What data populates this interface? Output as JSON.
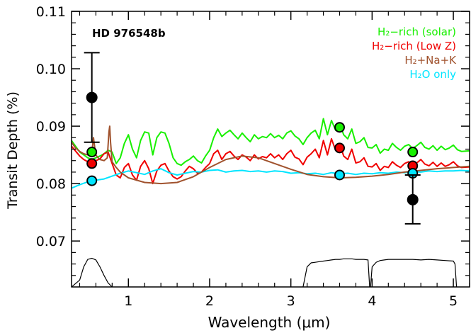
{
  "chart_data": {
    "type": "line",
    "planet_label": "HD 976548b",
    "xlabel": "Wavelength (μm)",
    "ylabel": "Transit Depth (%)",
    "xlim": [
      0.3,
      5.2
    ],
    "ylim": [
      0.062,
      0.11
    ],
    "xticks": [
      1,
      2,
      3,
      4,
      5
    ],
    "yticks": [
      0.07,
      0.08,
      0.09,
      0.1,
      0.11
    ],
    "ytick_labels": [
      "0.07",
      "0.08",
      "0.09",
      "0.10",
      "0.11"
    ],
    "legend": [
      {
        "label": "H₂−rich (solar)",
        "color": "#18f000"
      },
      {
        "label": "H₂−rich (Low Z)",
        "color": "#f00000"
      },
      {
        "label": "H₂+Na+K",
        "color": "#a0522d"
      },
      {
        "label": "H₂O only",
        "color": "#00e5ff"
      }
    ],
    "series": [
      {
        "name": "H₂−rich (solar)",
        "color": "#18f000",
        "x": [
          0.3,
          0.4,
          0.45,
          0.5,
          0.55,
          0.6,
          0.65,
          0.7,
          0.75,
          0.8,
          0.85,
          0.9,
          0.95,
          1.0,
          1.05,
          1.1,
          1.15,
          1.2,
          1.25,
          1.3,
          1.35,
          1.4,
          1.45,
          1.5,
          1.55,
          1.6,
          1.65,
          1.7,
          1.75,
          1.8,
          1.85,
          1.9,
          1.95,
          2.0,
          2.05,
          2.1,
          2.15,
          2.2,
          2.25,
          2.3,
          2.35,
          2.4,
          2.45,
          2.5,
          2.55,
          2.6,
          2.65,
          2.7,
          2.75,
          2.8,
          2.85,
          2.9,
          2.95,
          3.0,
          3.05,
          3.1,
          3.15,
          3.2,
          3.25,
          3.3,
          3.35,
          3.4,
          3.45,
          3.5,
          3.55,
          3.6,
          3.65,
          3.7,
          3.75,
          3.8,
          3.85,
          3.9,
          3.95,
          4.0,
          4.05,
          4.1,
          4.15,
          4.2,
          4.25,
          4.3,
          4.35,
          4.4,
          4.45,
          4.5,
          4.55,
          4.6,
          4.65,
          4.7,
          4.75,
          4.8,
          4.85,
          4.9,
          4.95,
          5.0,
          5.05,
          5.1,
          5.2
        ],
        "y": [
          0.0875,
          0.0855,
          0.085,
          0.0845,
          0.0842,
          0.0845,
          0.0848,
          0.0852,
          0.0858,
          0.0855,
          0.0835,
          0.0845,
          0.087,
          0.0885,
          0.086,
          0.0845,
          0.0875,
          0.089,
          0.0888,
          0.085,
          0.088,
          0.089,
          0.0888,
          0.087,
          0.0845,
          0.0835,
          0.0832,
          0.0838,
          0.0842,
          0.0848,
          0.084,
          0.0836,
          0.0848,
          0.0858,
          0.088,
          0.0895,
          0.0882,
          0.0888,
          0.0893,
          0.0885,
          0.0878,
          0.0888,
          0.088,
          0.0873,
          0.0885,
          0.0878,
          0.0882,
          0.088,
          0.0887,
          0.088,
          0.0884,
          0.0878,
          0.0888,
          0.0892,
          0.0883,
          0.0878,
          0.0868,
          0.088,
          0.0888,
          0.0893,
          0.0878,
          0.0913,
          0.0885,
          0.091,
          0.0893,
          0.0905,
          0.0885,
          0.0878,
          0.0895,
          0.087,
          0.0873,
          0.088,
          0.0863,
          0.0862,
          0.0868,
          0.0853,
          0.086,
          0.0858,
          0.087,
          0.0863,
          0.0858,
          0.0865,
          0.0868,
          0.0861,
          0.0866,
          0.0872,
          0.0863,
          0.086,
          0.0866,
          0.0858,
          0.0865,
          0.0859,
          0.0862,
          0.0867,
          0.0859,
          0.0856,
          0.0857
        ]
      },
      {
        "name": "H₂−rich (Low Z)",
        "color": "#f00000",
        "x": [
          0.3,
          0.4,
          0.45,
          0.5,
          0.55,
          0.6,
          0.65,
          0.7,
          0.75,
          0.8,
          0.85,
          0.9,
          0.95,
          1.0,
          1.05,
          1.1,
          1.15,
          1.2,
          1.25,
          1.3,
          1.35,
          1.4,
          1.45,
          1.5,
          1.55,
          1.6,
          1.65,
          1.7,
          1.75,
          1.8,
          1.85,
          1.9,
          1.95,
          2.0,
          2.05,
          2.1,
          2.15,
          2.2,
          2.25,
          2.3,
          2.35,
          2.4,
          2.45,
          2.5,
          2.55,
          2.6,
          2.65,
          2.7,
          2.75,
          2.8,
          2.85,
          2.9,
          2.95,
          3.0,
          3.05,
          3.1,
          3.15,
          3.2,
          3.25,
          3.3,
          3.35,
          3.4,
          3.45,
          3.5,
          3.55,
          3.6,
          3.65,
          3.7,
          3.75,
          3.8,
          3.85,
          3.9,
          3.95,
          4.0,
          4.05,
          4.1,
          4.15,
          4.2,
          4.25,
          4.3,
          4.35,
          4.4,
          4.45,
          4.5,
          4.55,
          4.6,
          4.65,
          4.7,
          4.75,
          4.8,
          4.85,
          4.9,
          4.95,
          5.0,
          5.05,
          5.1,
          5.2
        ],
        "y": [
          0.0865,
          0.0848,
          0.0842,
          0.0838,
          0.0836,
          0.084,
          0.0843,
          0.0852,
          0.0855,
          0.0835,
          0.0815,
          0.081,
          0.0828,
          0.0835,
          0.0815,
          0.0806,
          0.083,
          0.084,
          0.0826,
          0.08,
          0.0822,
          0.0832,
          0.0835,
          0.0822,
          0.0812,
          0.0808,
          0.0812,
          0.0822,
          0.083,
          0.0826,
          0.0818,
          0.082,
          0.0828,
          0.0835,
          0.0852,
          0.0858,
          0.0842,
          0.0852,
          0.0856,
          0.0848,
          0.0842,
          0.085,
          0.0846,
          0.084,
          0.085,
          0.0843,
          0.0847,
          0.0845,
          0.0852,
          0.0845,
          0.085,
          0.0842,
          0.0852,
          0.0858,
          0.0846,
          0.0843,
          0.0833,
          0.0846,
          0.0852,
          0.086,
          0.0845,
          0.0875,
          0.085,
          0.0878,
          0.0858,
          0.087,
          0.0848,
          0.0842,
          0.086,
          0.0836,
          0.0838,
          0.0845,
          0.083,
          0.0829,
          0.0835,
          0.0823,
          0.083,
          0.0828,
          0.0838,
          0.0832,
          0.0828,
          0.0835,
          0.0838,
          0.0832,
          0.0836,
          0.0842,
          0.0834,
          0.0831,
          0.0837,
          0.083,
          0.0836,
          0.083,
          0.0833,
          0.0838,
          0.0831,
          0.0828,
          0.0829
        ]
      },
      {
        "name": "H₂+Na+K",
        "color": "#a0522d",
        "x": [
          0.3,
          0.35,
          0.4,
          0.45,
          0.5,
          0.55,
          0.57,
          0.59,
          0.6,
          0.62,
          0.65,
          0.7,
          0.74,
          0.76,
          0.77,
          0.78,
          0.8,
          0.85,
          0.9,
          1.0,
          1.2,
          1.4,
          1.6,
          1.8,
          2.0,
          2.2,
          2.4,
          2.6,
          2.8,
          3.0,
          3.2,
          3.4,
          3.6,
          3.8,
          4.0,
          4.2,
          4.4,
          4.6,
          4.8,
          5.0,
          5.2
        ],
        "y": [
          0.0872,
          0.0862,
          0.0856,
          0.0852,
          0.085,
          0.0855,
          0.088,
          0.0858,
          0.085,
          0.0846,
          0.0842,
          0.084,
          0.0845,
          0.089,
          0.09,
          0.0872,
          0.0838,
          0.0828,
          0.082,
          0.081,
          0.0802,
          0.08,
          0.0802,
          0.0812,
          0.0828,
          0.0842,
          0.0848,
          0.0845,
          0.0835,
          0.0825,
          0.0816,
          0.0812,
          0.081,
          0.0811,
          0.0813,
          0.0816,
          0.082,
          0.0823,
          0.0826,
          0.0828,
          0.083
        ]
      },
      {
        "name": "H₂O only",
        "color": "#00e5ff",
        "x": [
          0.3,
          0.4,
          0.5,
          0.6,
          0.7,
          0.8,
          0.9,
          1.0,
          1.1,
          1.2,
          1.3,
          1.4,
          1.5,
          1.6,
          1.7,
          1.8,
          1.9,
          2.0,
          2.1,
          2.2,
          2.3,
          2.4,
          2.5,
          2.6,
          2.7,
          2.8,
          2.9,
          3.0,
          3.1,
          3.2,
          3.3,
          3.4,
          3.5,
          3.6,
          3.7,
          3.8,
          3.9,
          4.0,
          4.1,
          4.2,
          4.3,
          4.4,
          4.5,
          4.6,
          4.7,
          4.8,
          4.9,
          5.0,
          5.1,
          5.2
        ],
        "y": [
          0.0792,
          0.0798,
          0.0803,
          0.0806,
          0.0808,
          0.0813,
          0.0818,
          0.0822,
          0.0819,
          0.0816,
          0.0822,
          0.0826,
          0.0819,
          0.0815,
          0.0818,
          0.0821,
          0.082,
          0.0823,
          0.0824,
          0.082,
          0.0822,
          0.0823,
          0.0821,
          0.0822,
          0.082,
          0.0822,
          0.0821,
          0.0818,
          0.0819,
          0.0817,
          0.0818,
          0.0816,
          0.0819,
          0.0817,
          0.0818,
          0.0816,
          0.0818,
          0.0817,
          0.0819,
          0.0818,
          0.082,
          0.0819,
          0.0821,
          0.082,
          0.0822,
          0.0821,
          0.0822,
          0.0822,
          0.0823,
          0.0822
        ]
      }
    ],
    "observed": [
      {
        "x": 0.55,
        "y": 0.095,
        "yerr_low": 0.0872,
        "yerr_high": 0.1028
      },
      {
        "x": 4.5,
        "y": 0.0772,
        "yerr_low": 0.073,
        "yerr_high": 0.0815
      }
    ],
    "band_points": [
      {
        "series": "H₂−rich (solar)",
        "color": "#18f000",
        "x": 0.55,
        "y": 0.0855
      },
      {
        "series": "H₂−rich (Low Z)",
        "color": "#f00000",
        "x": 0.55,
        "y": 0.0835
      },
      {
        "series": "H₂O only",
        "color": "#00e5ff",
        "x": 0.55,
        "y": 0.0805
      },
      {
        "series": "H₂−rich (solar)",
        "color": "#18f000",
        "x": 3.6,
        "y": 0.0898
      },
      {
        "series": "H₂−rich (Low Z)",
        "color": "#f00000",
        "x": 3.6,
        "y": 0.0862
      },
      {
        "series": "H₂O only",
        "color": "#00e5ff",
        "x": 3.6,
        "y": 0.0815
      },
      {
        "series": "H₂−rich (solar)",
        "color": "#18f000",
        "x": 4.5,
        "y": 0.0855
      },
      {
        "series": "H₂−rich (Low Z)",
        "color": "#f00000",
        "x": 4.5,
        "y": 0.0831
      },
      {
        "series": "H₂O only",
        "color": "#00e5ff",
        "x": 4.5,
        "y": 0.0818
      }
    ],
    "filter_curves": [
      {
        "name": "optical",
        "x": [
          0.3,
          0.4,
          0.45,
          0.5,
          0.55,
          0.6,
          0.65,
          0.7,
          0.75,
          0.8
        ],
        "y": [
          0.062,
          0.0632,
          0.0655,
          0.0668,
          0.067,
          0.0667,
          0.0655,
          0.064,
          0.0627,
          0.062
        ]
      },
      {
        "name": "ch1",
        "x": [
          3.15,
          3.2,
          3.25,
          3.3,
          3.35,
          3.4,
          3.45,
          3.5,
          3.55,
          3.6,
          3.65,
          3.7,
          3.75,
          3.8,
          3.85,
          3.9,
          3.95,
          3.97
        ],
        "y": [
          0.062,
          0.0655,
          0.0662,
          0.0663,
          0.0664,
          0.0665,
          0.0666,
          0.0667,
          0.0668,
          0.0668,
          0.0669,
          0.0669,
          0.0669,
          0.0668,
          0.0668,
          0.0668,
          0.0667,
          0.062
        ]
      },
      {
        "name": "ch2",
        "x": [
          3.98,
          4.0,
          4.05,
          4.1,
          4.15,
          4.2,
          4.3,
          4.4,
          4.5,
          4.6,
          4.7,
          4.8,
          4.9,
          5.0,
          5.02,
          5.04
        ],
        "y": [
          0.062,
          0.0655,
          0.0663,
          0.0666,
          0.0667,
          0.0668,
          0.0668,
          0.0668,
          0.0668,
          0.0667,
          0.0668,
          0.0667,
          0.0666,
          0.0665,
          0.066,
          0.062
        ]
      }
    ]
  }
}
